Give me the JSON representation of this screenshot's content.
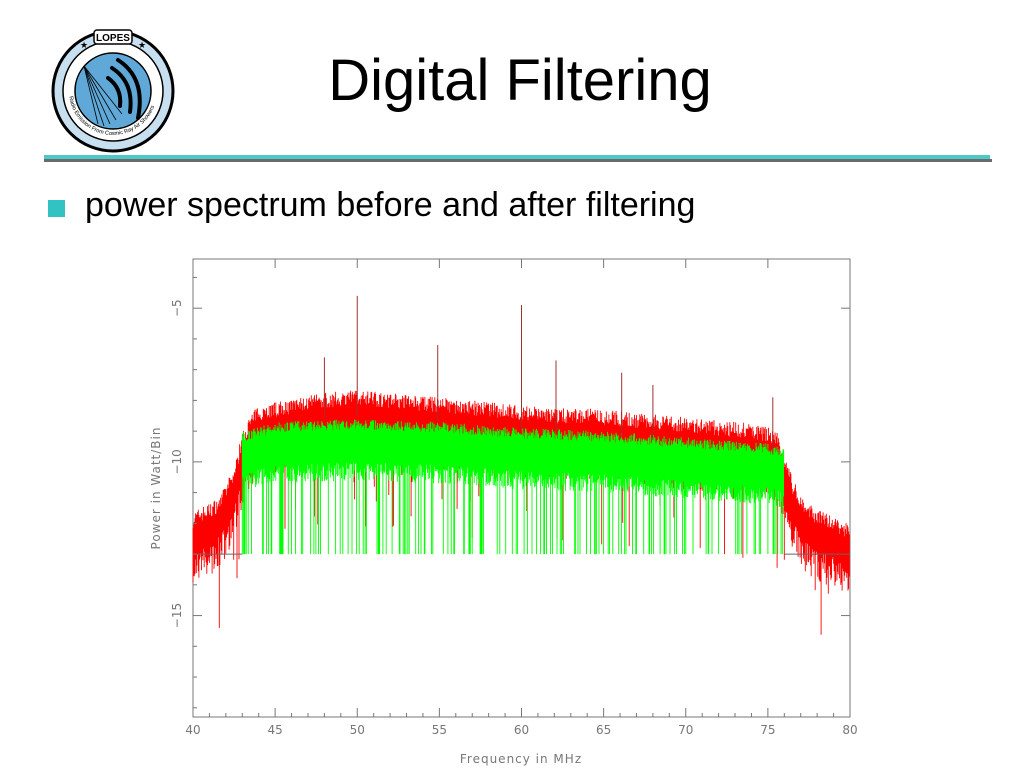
{
  "slide": {
    "title": "Digital Filtering",
    "bullet": "power spectrum before and after filtering"
  },
  "logo": {
    "name": "LOPES",
    "ring_text": "Radio Emission From Cosmic Ray Air Showers"
  },
  "colors": {
    "accent_teal": "#33c2c2",
    "before_filter": "#ff0000",
    "after_filter": "#00ff00",
    "axis": "#777777"
  },
  "chart_data": {
    "type": "line",
    "title": "",
    "xlabel": "Frequency in MHz",
    "ylabel": "Power in Watt/Bin",
    "xlim": [
      40,
      80
    ],
    "ylim": [
      -18.3,
      -3.4
    ],
    "xticks": [
      40,
      45,
      50,
      55,
      60,
      65,
      70,
      75,
      80
    ],
    "yticks": [
      -5,
      -10,
      -15
    ],
    "grid": false,
    "legend": "none",
    "series": [
      {
        "color": "#ff0000",
        "x": [
          40,
          40.5,
          41,
          41.5,
          42,
          42.5,
          43,
          43.5,
          44,
          46,
          48,
          50,
          52,
          54,
          56,
          58,
          60,
          62,
          64,
          66,
          68,
          70,
          72,
          74,
          75,
          75.5,
          76,
          76.5,
          77,
          77.5,
          78,
          79,
          80
        ],
        "values": [
          -12.5,
          -12.3,
          -12.2,
          -12.0,
          -11.6,
          -11.0,
          -9.9,
          -9.3,
          -9.0,
          -8.8,
          -8.6,
          -8.5,
          -8.6,
          -8.7,
          -8.8,
          -8.9,
          -9.0,
          -9.1,
          -9.1,
          -9.2,
          -9.3,
          -9.4,
          -9.5,
          -9.6,
          -9.7,
          -9.8,
          -10.5,
          -11.4,
          -11.9,
          -12.2,
          -12.4,
          -12.6,
          -12.9
        ]
      },
      {
        "color": "#00ff00",
        "x": [
          43,
          45,
          50,
          55,
          60,
          65,
          70,
          75,
          76
        ],
        "values": [
          -9.7,
          -9.4,
          -9.3,
          -9.4,
          -9.6,
          -9.7,
          -9.9,
          -10.1,
          -10.2
        ]
      }
    ],
    "spikes": [
      {
        "x": 48.0,
        "y": -6.6
      },
      {
        "x": 50.0,
        "y": -4.6
      },
      {
        "x": 54.9,
        "y": -6.2
      },
      {
        "x": 60.0,
        "y": -4.9
      },
      {
        "x": 62.1,
        "y": -6.7
      },
      {
        "x": 66.1,
        "y": -7.1
      },
      {
        "x": 68.0,
        "y": -7.5
      },
      {
        "x": 75.3,
        "y": -7.9
      }
    ],
    "filtered_floor": -13.0,
    "filtered_band": [
      43,
      76
    ]
  }
}
